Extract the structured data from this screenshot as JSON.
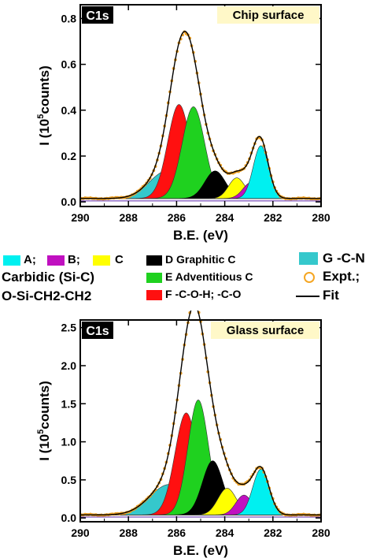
{
  "chart_data": [
    {
      "type": "area",
      "corner_label": "C1s",
      "title": "Chip surface",
      "xlabel": "B.E. (eV)",
      "ylabel_pre": "I (10",
      "ylabel_sup": "5",
      "ylabel_post": "counts)",
      "xlim": [
        290,
        280
      ],
      "ylim": [
        -0.02,
        0.86
      ],
      "xticks": [
        290,
        288,
        286,
        284,
        282,
        280
      ],
      "yticks": [
        0.0,
        0.2,
        0.4,
        0.6,
        0.8
      ],
      "baseline": 0.015,
      "components": [
        {
          "id": "G",
          "center": 286.4,
          "amplitude": 0.12,
          "fwhm": 1.7,
          "color": "#35c8cc"
        },
        {
          "id": "F",
          "center": 285.9,
          "amplitude": 0.41,
          "fwhm": 1.1,
          "color": "#ff1010"
        },
        {
          "id": "E",
          "center": 285.3,
          "amplitude": 0.4,
          "fwhm": 1.1,
          "color": "#1fd11f"
        },
        {
          "id": "D",
          "center": 284.4,
          "amplitude": 0.12,
          "fwhm": 1.0,
          "color": "#000000"
        },
        {
          "id": "C",
          "center": 283.5,
          "amplitude": 0.09,
          "fwhm": 0.8,
          "color": "#ffff00"
        },
        {
          "id": "B",
          "center": 282.9,
          "amplitude": 0.07,
          "fwhm": 0.8,
          "color": "#c010c0"
        },
        {
          "id": "A",
          "center": 282.5,
          "amplitude": 0.23,
          "fwhm": 0.75,
          "color": "#00f0f0"
        }
      ]
    },
    {
      "type": "area",
      "corner_label": "C1s",
      "title": "Glass surface",
      "xlabel": "B.E. (eV)",
      "ylabel_pre": "I (10",
      "ylabel_sup": "5",
      "ylabel_post": "counts)",
      "xlim": [
        290,
        280
      ],
      "ylim": [
        -0.05,
        2.6
      ],
      "xticks": [
        290,
        288,
        286,
        284,
        282,
        280
      ],
      "yticks": [
        0.0,
        0.5,
        1.0,
        1.5,
        2.0,
        2.5
      ],
      "baseline": 0.04,
      "components": [
        {
          "id": "G",
          "center": 286.3,
          "amplitude": 0.4,
          "fwhm": 1.9,
          "color": "#35c8cc"
        },
        {
          "id": "F",
          "center": 285.6,
          "amplitude": 1.34,
          "fwhm": 1.1,
          "color": "#ff1010"
        },
        {
          "id": "E",
          "center": 285.1,
          "amplitude": 1.51,
          "fwhm": 1.0,
          "color": "#1fd11f"
        },
        {
          "id": "D",
          "center": 284.5,
          "amplitude": 0.71,
          "fwhm": 1.0,
          "color": "#000000"
        },
        {
          "id": "C",
          "center": 283.9,
          "amplitude": 0.35,
          "fwhm": 0.9,
          "color": "#ffff00"
        },
        {
          "id": "B",
          "center": 283.2,
          "amplitude": 0.26,
          "fwhm": 0.8,
          "color": "#c010c0"
        },
        {
          "id": "A",
          "center": 282.5,
          "amplitude": 0.6,
          "fwhm": 0.8,
          "color": "#00f0f0"
        }
      ]
    }
  ],
  "legend": {
    "abc": {
      "a": "A;",
      "b": "B;",
      "c": "C",
      "desc1": "Carbidic (Si-C)",
      "desc2": "O-Si-CH2-CH2"
    },
    "d": "D Graphitic C",
    "e": "E Adventitious C",
    "f": "F -C-O-H; -C-O",
    "g": "G -C-N",
    "expt": "Expt.;",
    "fit": "Fit",
    "colors": {
      "A": "#00f0f0",
      "B": "#c010c0",
      "C": "#ffff00",
      "D": "#000000",
      "E": "#1fd11f",
      "F": "#ff1010",
      "G": "#35c8cc",
      "expt": "#f5a623"
    }
  }
}
